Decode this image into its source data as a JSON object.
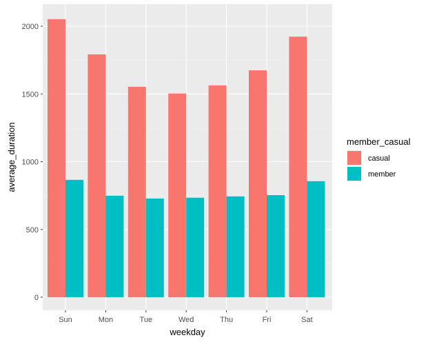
{
  "chart_data": {
    "type": "bar",
    "title": "",
    "xlabel": "weekday",
    "ylabel": "average_duration",
    "categories": [
      "Sun",
      "Mon",
      "Tue",
      "Wed",
      "Thu",
      "Fri",
      "Sat"
    ],
    "series": [
      {
        "name": "casual",
        "color": "#F8766D",
        "values": [
          2052,
          1792,
          1553,
          1503,
          1563,
          1674,
          1923
        ]
      },
      {
        "name": "member",
        "color": "#00BFC4",
        "values": [
          866,
          749,
          728,
          734,
          744,
          753,
          856
        ]
      }
    ],
    "ylim": [
      0,
      2100
    ],
    "yticks": [
      0,
      500,
      1000,
      1500,
      2000
    ],
    "ytick_labels": [
      "0",
      "500",
      "1000",
      "1500",
      "2000"
    ],
    "grid": true,
    "legend": {
      "title": "member_casual",
      "position": "right"
    },
    "panel_background": "#EBEBEB"
  }
}
